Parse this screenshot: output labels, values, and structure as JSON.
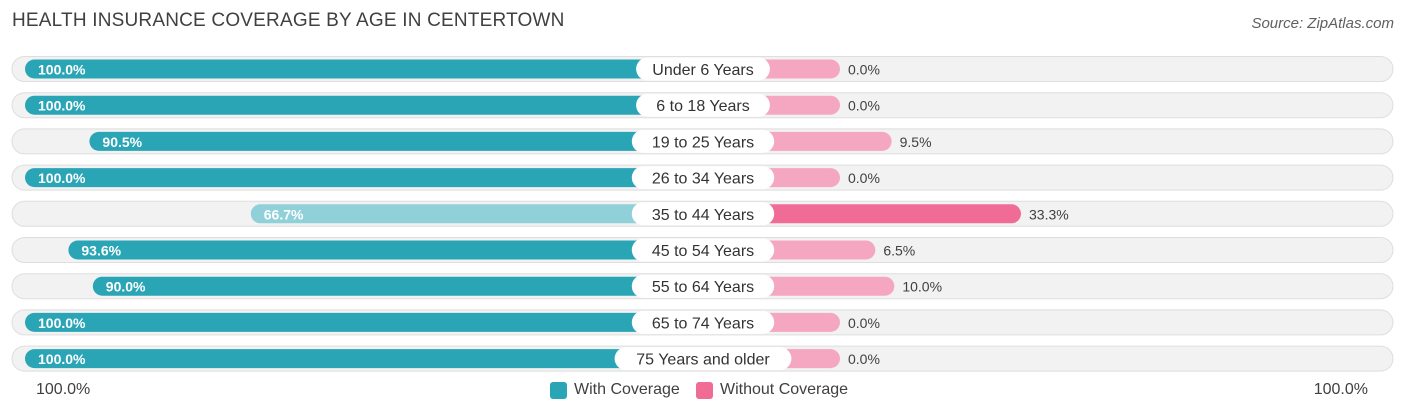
{
  "title": "HEALTH INSURANCE COVERAGE BY AGE IN CENTERTOWN",
  "source": "Source: ZipAtlas.com",
  "colors": {
    "with_coverage": "#2aa5b6",
    "with_coverage_light": "#8fd0d9",
    "without_coverage": "#f06c97",
    "without_coverage_light": "#f5a7c1",
    "row_bg": "#f2f2f2",
    "row_border": "#dedede"
  },
  "legend": {
    "with_label": "With Coverage",
    "without_label": "Without Coverage",
    "axis_left": "100.0%",
    "axis_right": "100.0%"
  },
  "chart_data": {
    "type": "bar",
    "orientation": "diverging-horizontal",
    "title": "HEALTH INSURANCE COVERAGE BY AGE IN CENTERTOWN",
    "categories": [
      "Under 6 Years",
      "6 to 18 Years",
      "19 to 25 Years",
      "26 to 34 Years",
      "35 to 44 Years",
      "45 to 54 Years",
      "55 to 64 Years",
      "65 to 74 Years",
      "75 Years and older"
    ],
    "series": [
      {
        "name": "With Coverage",
        "values": [
          100.0,
          100.0,
          90.5,
          100.0,
          66.7,
          93.6,
          90.0,
          100.0,
          100.0
        ],
        "labels": [
          "100.0%",
          "100.0%",
          "90.5%",
          "100.0%",
          "66.7%",
          "93.6%",
          "90.0%",
          "100.0%",
          "100.0%"
        ]
      },
      {
        "name": "Without Coverage",
        "values": [
          0.0,
          0.0,
          9.5,
          0.0,
          33.3,
          6.5,
          10.0,
          0.0,
          0.0
        ],
        "labels": [
          "0.0%",
          "0.0%",
          "9.5%",
          "0.0%",
          "33.3%",
          "6.5%",
          "10.0%",
          "0.0%",
          "0.0%"
        ]
      }
    ],
    "xlim": [
      0,
      100
    ],
    "legend_position": "bottom-center"
  }
}
